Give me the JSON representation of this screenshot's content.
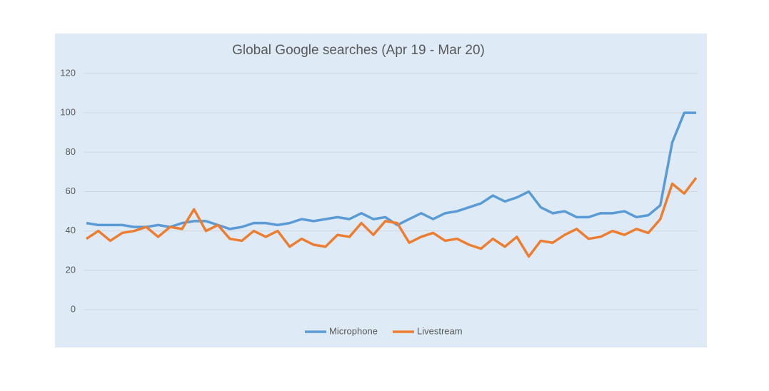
{
  "chart_data": {
    "type": "line",
    "title": "Global Google searches (Apr 19 - Mar 20)",
    "categories": [
      null,
      null,
      null,
      null,
      null,
      null,
      null,
      null,
      null,
      null,
      null,
      null,
      null,
      null,
      null,
      null,
      null,
      null,
      null,
      null,
      null,
      null,
      null,
      null,
      null,
      null,
      null,
      null,
      null,
      null,
      null,
      null,
      null,
      null,
      null,
      null,
      null,
      null,
      null,
      null,
      null,
      null,
      null,
      null,
      null,
      null,
      null,
      null,
      null,
      null,
      null,
      null
    ],
    "series": [
      {
        "name": "Microphone",
        "color": "#5b9bd5",
        "values": [
          44,
          43,
          43,
          43,
          42,
          42,
          43,
          42,
          44,
          45,
          45,
          43,
          41,
          42,
          44,
          44,
          43,
          44,
          46,
          45,
          46,
          47,
          46,
          49,
          46,
          47,
          43,
          46,
          49,
          46,
          49,
          50,
          52,
          54,
          58,
          55,
          57,
          60,
          52,
          49,
          50,
          47,
          47,
          49,
          49,
          50,
          47,
          48,
          53,
          85,
          100,
          100
        ]
      },
      {
        "name": "Livestream",
        "color": "#ed7d31",
        "values": [
          36,
          40,
          35,
          39,
          40,
          42,
          37,
          42,
          41,
          51,
          40,
          43,
          36,
          35,
          40,
          37,
          40,
          32,
          36,
          33,
          32,
          38,
          37,
          44,
          38,
          45,
          44,
          34,
          37,
          39,
          35,
          36,
          33,
          31,
          36,
          32,
          37,
          27,
          35,
          34,
          38,
          41,
          36,
          37,
          40,
          38,
          41,
          39,
          46,
          64,
          59,
          67
        ]
      }
    ],
    "ylim": [
      0,
      120
    ],
    "yticks": [
      0,
      20,
      40,
      60,
      80,
      100,
      120
    ],
    "grid": true,
    "legend": "bottom"
  }
}
